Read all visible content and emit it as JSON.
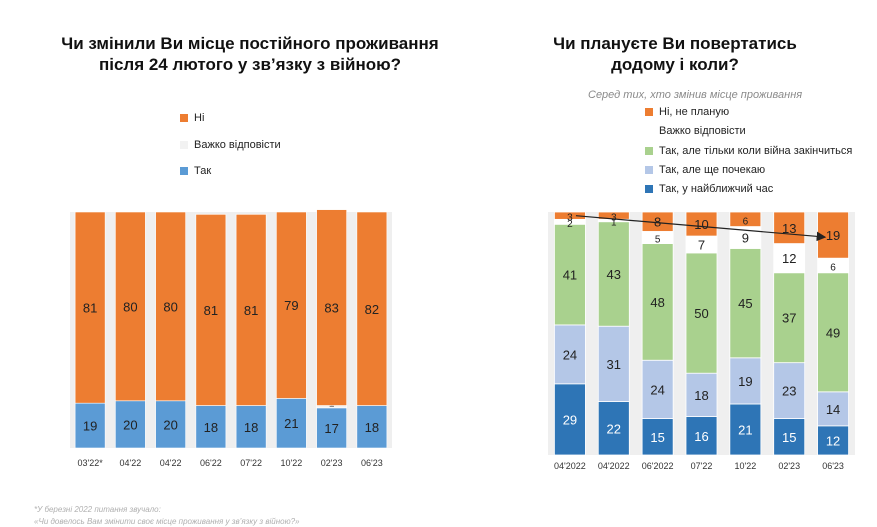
{
  "left": {
    "title_line1": "Чи змінили Ви місце постійного проживання",
    "title_line2": "після  24 лютого у зв’язку з війною?",
    "legend": [
      {
        "label": "Ні",
        "color": "#ED7D31"
      },
      {
        "label": "Важко відповісти",
        "color": "#F2F2F2"
      },
      {
        "label": "Так",
        "color": "#5B9BD5"
      }
    ]
  },
  "right": {
    "title_line1": "Чи плануєте Ви повертатись",
    "title_line2": "додому і коли?",
    "subtitle": "Серед тих, хто змінив місце проживання",
    "legend": [
      {
        "label": "Ні, не планую",
        "color": "#ED7D31"
      },
      {
        "label": "Важко відповісти",
        "color": "#FFFFFF"
      },
      {
        "label": "Так, але тільки коли війна закінчиться",
        "color": "#A9D18E"
      },
      {
        "label": "Так, але ще почекаю",
        "color": "#B4C7E7"
      },
      {
        "label": "Так, у найближчий час",
        "color": "#2E75B6"
      }
    ]
  },
  "footnote_line1": "*У березні 2022 питання звучало:",
  "footnote_line2": "«Чи довелось Вам змінити своє місце проживання у зв’язку з війною?»",
  "chart_data": [
    {
      "type": "bar",
      "stacked": true,
      "categories": [
        "03'22*",
        "04'22",
        "04'22",
        "06'22",
        "07'22",
        "10'22",
        "02'23",
        "06'23"
      ],
      "series": [
        {
          "name": "Так",
          "color": "#5B9BD5",
          "values": [
            19,
            20,
            20,
            18,
            18,
            21,
            17,
            18
          ]
        },
        {
          "name": "Важко відповісти",
          "color": "#F2F2F2",
          "values": [
            0,
            0,
            0,
            0,
            0,
            0,
            1,
            0
          ]
        },
        {
          "name": "Ні",
          "color": "#ED7D31",
          "values": [
            81,
            80,
            80,
            81,
            81,
            79,
            83,
            82
          ]
        }
      ],
      "ylim": [
        0,
        100
      ]
    },
    {
      "type": "bar",
      "stacked": true,
      "categories": [
        "04'2022",
        "04'2022",
        "06'2022",
        "07'22",
        "10'22",
        "02'23",
        "06'23"
      ],
      "series": [
        {
          "name": "Так, у найближчий час",
          "color": "#2E75B6",
          "values": [
            29,
            22,
            15,
            16,
            21,
            15,
            12
          ]
        },
        {
          "name": "Так, але ще почекаю",
          "color": "#B4C7E7",
          "values": [
            24,
            31,
            24,
            18,
            19,
            23,
            14
          ]
        },
        {
          "name": "Так, але тільки коли війна закінчиться",
          "color": "#A9D18E",
          "values": [
            41,
            43,
            48,
            50,
            45,
            37,
            49
          ]
        },
        {
          "name": "Важко відповісти",
          "color": "#FFFFFF",
          "values": [
            2,
            1,
            5,
            7,
            9,
            12,
            6
          ]
        },
        {
          "name": "Ні, не планую",
          "color": "#ED7D31",
          "values": [
            3,
            3,
            8,
            10,
            6,
            13,
            19
          ]
        }
      ],
      "annotation": "trend arrow from 3 to 19 for Ні, не планую",
      "ylim": [
        0,
        100
      ]
    }
  ]
}
